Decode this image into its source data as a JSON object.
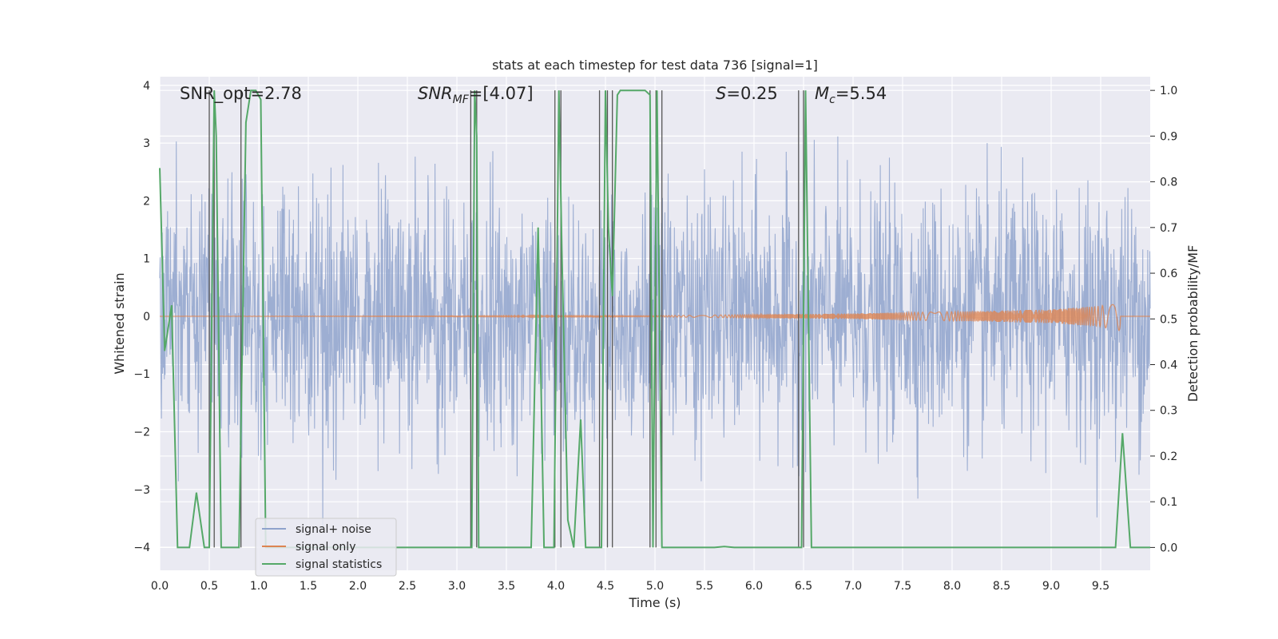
{
  "chart_data": {
    "type": "line",
    "title": "stats at each timestep for test data 736 [signal=1]",
    "xlabel": "Time (s)",
    "ylabel_left": "Whitened strain",
    "ylabel_right": "Detection probability/MF",
    "xlim": [
      0.0,
      10.0
    ],
    "ylim_left": [
      -4.4,
      4.15
    ],
    "ylim_right": [
      -0.05,
      1.03
    ],
    "x_ticks": [
      "0.0",
      "0.5",
      "1.0",
      "1.5",
      "2.0",
      "2.5",
      "3.0",
      "3.5",
      "4.0",
      "4.5",
      "5.0",
      "5.5",
      "6.0",
      "6.5",
      "7.0",
      "7.5",
      "8.0",
      "8.5",
      "9.0",
      "9.5"
    ],
    "y_ticks_left": [
      "−4",
      "−3",
      "−2",
      "−1",
      "0",
      "1",
      "2",
      "3",
      "4"
    ],
    "y_ticks_right": [
      "0.0",
      "0.1",
      "0.2",
      "0.3",
      "0.4",
      "0.5",
      "0.6",
      "0.7",
      "0.8",
      "0.9",
      "1.0"
    ],
    "grid": true,
    "legend_placement": "lower-left",
    "annotations": {
      "snr_opt": "SNR_opt=2.78",
      "snr_mf_sym": "SNR",
      "snr_mf_sub": "MF",
      "snr_mf_val": "=[4.07]",
      "s_sym": "S",
      "s_val": "=0.25",
      "mc_sym": "M",
      "mc_sub": "c",
      "mc_val": "=5.54"
    },
    "series": [
      {
        "name": "signal+ noise",
        "axis": "left",
        "color": "#8fa3cc",
        "description": "whitened noise, approximately gaussian with amplitude up to about ±3",
        "envelope": [
          -2.5,
          2.5
        ]
      },
      {
        "name": "signal only",
        "axis": "left",
        "color": "#dd8452",
        "description": "chirp growing from 0 to about ±0.25 near t=9.7 s",
        "x": [
          0.0,
          5.0,
          6.0,
          7.0,
          8.0,
          9.0,
          9.5,
          9.65,
          9.7
        ],
        "amplitude": [
          0.0,
          0.01,
          0.03,
          0.05,
          0.08,
          0.12,
          0.18,
          0.24,
          0.25
        ]
      },
      {
        "name": "signal statistics",
        "axis": "right",
        "color": "#55a868",
        "x": [
          0.0,
          0.05,
          0.12,
          0.18,
          0.3,
          0.37,
          0.45,
          0.5,
          0.55,
          0.57,
          0.62,
          0.8,
          0.87,
          0.92,
          0.97,
          1.02,
          1.07,
          1.12,
          1.2,
          3.1,
          3.15,
          3.18,
          3.2,
          3.22,
          3.26,
          3.75,
          3.82,
          3.88,
          3.94,
          3.98,
          4.03,
          4.06,
          4.12,
          4.18,
          4.25,
          4.3,
          4.42,
          4.46,
          4.5,
          4.53,
          4.57,
          4.62,
          4.65,
          4.9,
          4.95,
          4.98,
          5.02,
          5.07,
          5.12,
          5.6,
          5.7,
          5.8,
          6.42,
          6.48,
          6.52,
          6.58,
          9.5,
          9.65,
          9.72,
          9.8,
          10.0
        ],
        "values": [
          0.83,
          0.43,
          0.53,
          0.0,
          0.0,
          0.12,
          0.0,
          0.0,
          1.0,
          0.9,
          0.0,
          0.0,
          0.93,
          1.0,
          1.0,
          0.98,
          0.0,
          0.0,
          0.0,
          0.0,
          0.0,
          1.0,
          0.9,
          0.0,
          0.0,
          0.0,
          0.7,
          0.0,
          0.0,
          0.0,
          1.0,
          0.65,
          0.06,
          0.0,
          0.28,
          0.0,
          0.0,
          0.0,
          1.0,
          0.7,
          0.55,
          0.99,
          1.0,
          1.0,
          0.99,
          0.0,
          1.0,
          0.0,
          0.0,
          0.0,
          0.002,
          0.0,
          0.0,
          0.0,
          1.0,
          0.0,
          0.0,
          0.0,
          0.25,
          0.0,
          0.0
        ]
      }
    ],
    "vertical_markers": {
      "color": "#555555",
      "x": [
        0.5,
        0.55,
        0.82,
        3.14,
        3.2,
        3.99,
        4.05,
        4.44,
        4.52,
        4.57,
        4.95,
        5.01,
        5.07,
        6.45,
        6.5
      ]
    }
  }
}
